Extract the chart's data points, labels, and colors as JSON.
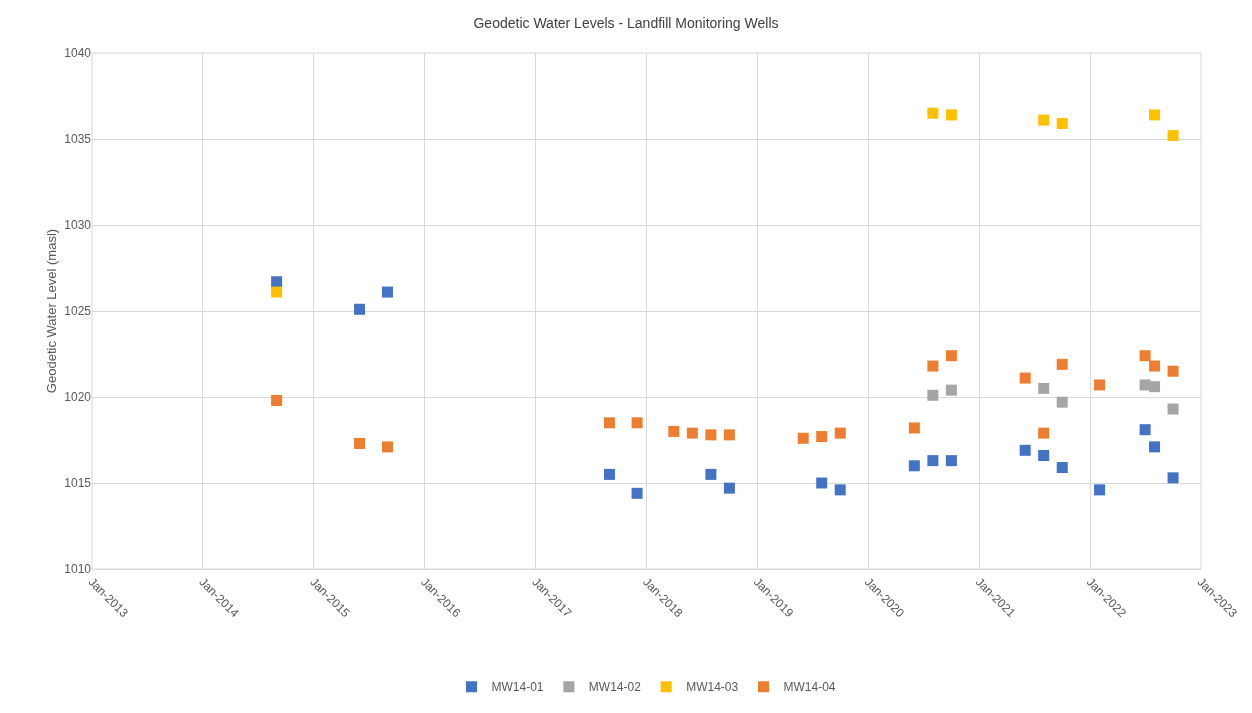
{
  "chart_data": {
    "type": "scatter",
    "title": "Geodetic Water Levels - Landfill Monitoring Wells",
    "ylabel": "Geodetic Water Level (masl)",
    "marker": "square",
    "grid": true,
    "legend": "bottom",
    "xlim": [
      "2013-01",
      "2023-01"
    ],
    "xticks": [
      {
        "value": "2013-01",
        "label": "Jan-2013"
      },
      {
        "value": "2014-01",
        "label": "Jan-2014"
      },
      {
        "value": "2015-01",
        "label": "Jan-2015"
      },
      {
        "value": "2016-01",
        "label": "Jan-2016"
      },
      {
        "value": "2017-01",
        "label": "Jan-2017"
      },
      {
        "value": "2018-01",
        "label": "Jan-2018"
      },
      {
        "value": "2019-01",
        "label": "Jan-2019"
      },
      {
        "value": "2020-01",
        "label": "Jan-2020"
      },
      {
        "value": "2021-01",
        "label": "Jan-2021"
      },
      {
        "value": "2022-01",
        "label": "Jan-2022"
      },
      {
        "value": "2023-01",
        "label": "Jan-2023"
      }
    ],
    "ylim": [
      1010,
      1040
    ],
    "yticks": [
      1010,
      1015,
      1020,
      1025,
      1030,
      1035,
      1040
    ],
    "series": [
      {
        "name": "MW14-01",
        "color": "#4472c4",
        "x": [
          "2014-09",
          "2015-06",
          "2015-09",
          "2017-09",
          "2017-12",
          "2018-08",
          "2018-10",
          "2019-08",
          "2019-10",
          "2020-06",
          "2020-08",
          "2020-10",
          "2021-06",
          "2021-08",
          "2021-10",
          "2022-02",
          "2022-07",
          "2022-08",
          "2022-10"
        ],
        "values": [
          1026.7,
          1025.1,
          1026.1,
          1015.5,
          1014.4,
          1015.5,
          1014.7,
          1015.0,
          1014.6,
          1016.0,
          1016.3,
          1016.3,
          1016.9,
          1016.6,
          1015.9,
          1014.6,
          1018.1,
          1017.1,
          1015.3
        ]
      },
      {
        "name": "MW14-02",
        "color": "#a5a5a5",
        "x": [
          "2020-08",
          "2020-10",
          "2021-08",
          "2021-10",
          "2022-07",
          "2022-08",
          "2022-10"
        ],
        "values": [
          1020.1,
          1020.4,
          1020.5,
          1019.7,
          1020.7,
          1020.6,
          1019.3
        ]
      },
      {
        "name": "MW14-03",
        "color": "#ffc000",
        "x": [
          "2014-09",
          "2020-08",
          "2020-10",
          "2021-08",
          "2021-10",
          "2022-08",
          "2022-10"
        ],
        "values": [
          1026.1,
          1036.5,
          1036.4,
          1036.1,
          1035.9,
          1036.4,
          1035.2
        ]
      },
      {
        "name": "MW14-04",
        "color": "#ed7d31",
        "x": [
          "2014-09",
          "2015-06",
          "2015-09",
          "2017-09",
          "2017-12",
          "2018-04",
          "2018-06",
          "2018-08",
          "2018-10",
          "2019-06",
          "2019-08",
          "2019-10",
          "2020-06",
          "2020-08",
          "2020-10",
          "2021-06",
          "2021-08",
          "2021-10",
          "2022-02",
          "2022-07",
          "2022-08",
          "2022-10"
        ],
        "values": [
          1019.8,
          1017.3,
          1017.1,
          1018.5,
          1018.5,
          1018.0,
          1017.9,
          1017.8,
          1017.8,
          1017.6,
          1017.7,
          1017.9,
          1018.2,
          1021.8,
          1022.4,
          1021.1,
          1017.9,
          1021.9,
          1020.7,
          1022.4,
          1021.8,
          1021.5
        ]
      }
    ]
  }
}
